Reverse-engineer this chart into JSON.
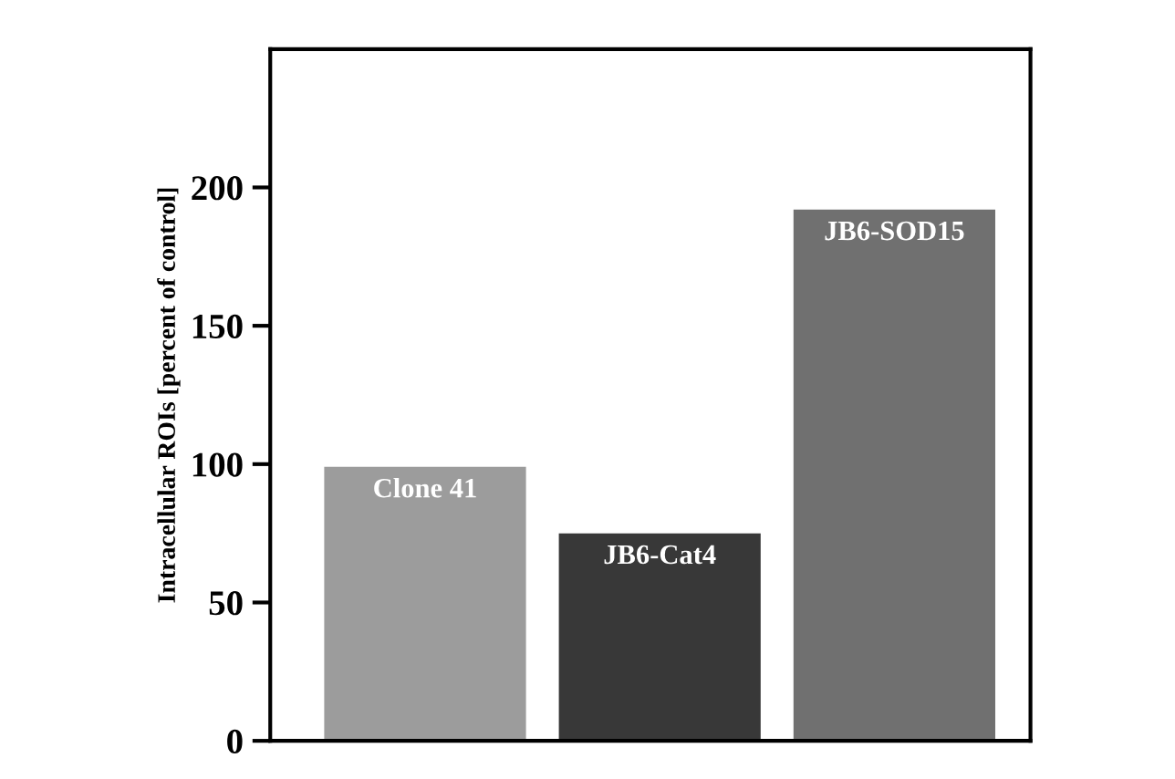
{
  "chart_data": {
    "type": "bar",
    "ylabel": "Intracellular ROIs [percent of control]",
    "categories": [
      "Clone 41",
      "JB6-Cat4",
      "JB6-SOD15"
    ],
    "values": [
      99,
      75,
      192
    ],
    "colors": [
      "#9c9c9c",
      "#383838",
      "#707070"
    ],
    "ylim": [
      0,
      250
    ],
    "yticks": [
      0,
      50,
      100,
      150,
      200
    ],
    "grid": false
  }
}
